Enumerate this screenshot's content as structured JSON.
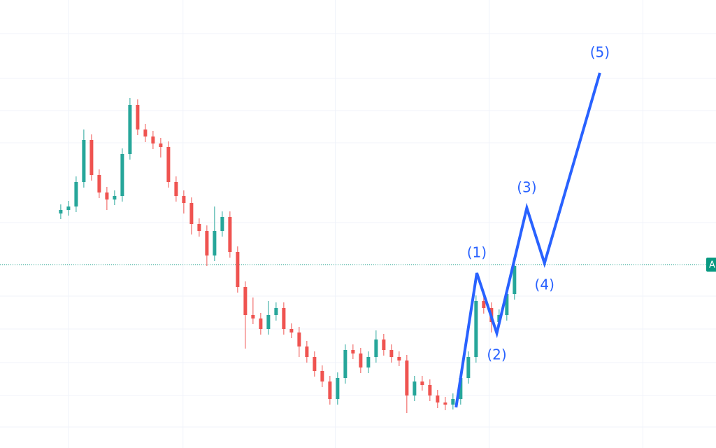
{
  "chart_data": {
    "type": "candlestick",
    "up_color": "#26a69a",
    "down_color": "#ef5350",
    "xlim": [
      -7.9,
      85.2
    ],
    "ylim": [
      0,
      640
    ],
    "grid_x": [
      1,
      15.9,
      35.7,
      55.7,
      75.7
    ],
    "grid_y": [
      592,
      528,
      482,
      436,
      322,
      217,
      170,
      122,
      75,
      30
    ],
    "open": [
      335,
      340,
      345,
      380,
      440,
      390,
      365,
      355,
      360,
      420,
      490,
      455,
      445,
      435,
      430,
      380,
      360,
      350,
      320,
      310,
      275,
      310,
      330,
      280,
      230,
      190,
      185,
      170,
      190,
      200,
      170,
      165,
      145,
      130,
      110,
      95,
      70,
      100,
      140,
      135,
      115,
      130,
      155,
      140,
      130,
      125,
      75,
      95,
      90,
      75,
      65,
      62,
      70,
      100,
      130,
      210,
      200,
      180,
      190,
      220
    ],
    "high": [
      348,
      353,
      388,
      455,
      448,
      398,
      373,
      368,
      428,
      500,
      498,
      463,
      453,
      443,
      438,
      388,
      368,
      358,
      328,
      318,
      345,
      338,
      338,
      288,
      238,
      215,
      193,
      210,
      208,
      208,
      178,
      173,
      153,
      138,
      118,
      103,
      108,
      148,
      148,
      143,
      138,
      168,
      163,
      148,
      138,
      133,
      103,
      103,
      98,
      83,
      73,
      78,
      108,
      138,
      218,
      225,
      208,
      198,
      228,
      268
    ],
    "low": [
      327,
      332,
      337,
      372,
      382,
      357,
      340,
      347,
      352,
      412,
      447,
      437,
      427,
      415,
      372,
      352,
      335,
      305,
      302,
      260,
      267,
      302,
      272,
      222,
      142,
      177,
      162,
      162,
      182,
      162,
      157,
      130,
      122,
      102,
      87,
      62,
      62,
      92,
      127,
      107,
      107,
      122,
      132,
      122,
      117,
      50,
      67,
      82,
      67,
      57,
      54,
      55,
      62,
      92,
      122,
      192,
      165,
      172,
      182,
      212
    ],
    "close": [
      340,
      345,
      380,
      440,
      390,
      365,
      355,
      360,
      420,
      490,
      455,
      445,
      435,
      430,
      380,
      360,
      350,
      320,
      310,
      275,
      310,
      330,
      280,
      230,
      190,
      185,
      170,
      190,
      200,
      170,
      165,
      145,
      130,
      110,
      95,
      70,
      100,
      140,
      135,
      115,
      130,
      155,
      140,
      130,
      125,
      75,
      95,
      90,
      75,
      65,
      62,
      70,
      100,
      130,
      210,
      200,
      180,
      190,
      220,
      260
    ],
    "price_line": {
      "value": 262,
      "label": "A",
      "color": "#089981"
    },
    "wave": {
      "color": "#2962ff",
      "x": [
        51.4,
        54.1,
        56.7,
        60.6,
        62.9,
        70.1
      ],
      "values": [
        58,
        250,
        164,
        343,
        264,
        536
      ],
      "labels": [
        null,
        "(1)",
        "(2)",
        "(3)",
        "(4)",
        "(5)"
      ]
    }
  }
}
